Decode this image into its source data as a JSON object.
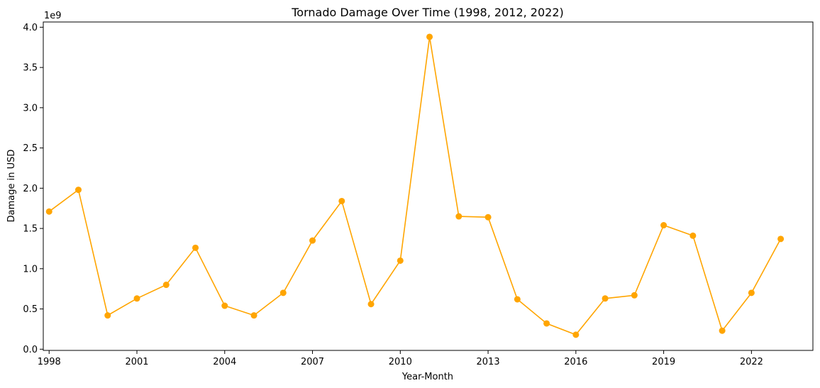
{
  "chart_data": {
    "type": "line",
    "title": "Tornado Damage Over Time (1998, 2012, 2022)",
    "xlabel": "Year-Month",
    "ylabel": "Damage in USD",
    "y_offset_label": "1e9",
    "y_scale_factor": 1000000000,
    "x": [
      1998,
      1999,
      2000,
      2001,
      2002,
      2003,
      2004,
      2005,
      2006,
      2007,
      2008,
      2009,
      2010,
      2011,
      2012,
      2013,
      2014,
      2015,
      2016,
      2017,
      2018,
      2019,
      2020,
      2021,
      2022,
      2023
    ],
    "series": [
      {
        "color": "#ffa500",
        "marker": "circle",
        "values": [
          1710000000,
          1980000000,
          420000000,
          630000000,
          800000000,
          1260000000,
          540000000,
          420000000,
          700000000,
          1350000000,
          1840000000,
          560000000,
          1100000000,
          3880000000,
          1650000000,
          1640000000,
          620000000,
          320000000,
          180000000,
          630000000,
          670000000,
          1540000000,
          1410000000,
          230000000,
          700000000,
          1370000000
        ]
      }
    ],
    "xticks": [
      1998,
      2001,
      2004,
      2007,
      2010,
      2013,
      2016,
      2019,
      2022
    ],
    "xtick_labels": [
      "1998",
      "2001",
      "2004",
      "2007",
      "2010",
      "2013",
      "2016",
      "2019",
      "2022"
    ],
    "yticks": [
      0.0,
      0.5,
      1.0,
      1.5,
      2.0,
      2.5,
      3.0,
      3.5,
      4.0
    ],
    "ytick_labels": [
      "0.0",
      "0.5",
      "1.0",
      "1.5",
      "2.0",
      "2.5",
      "3.0",
      "3.5",
      "4.0"
    ],
    "xlim": [
      1997.8,
      2024.1
    ],
    "ylim": [
      -0.015,
      4.065
    ],
    "grid": false,
    "legend": false
  }
}
